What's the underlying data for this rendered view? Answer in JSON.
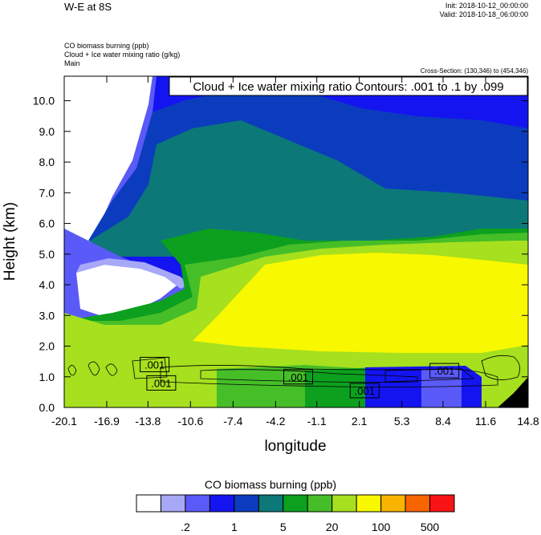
{
  "header": {
    "title": "W-E at 8S",
    "init": "Init: 2018-10-12_00:00:00",
    "valid": "Valid: 2018-10-18_06:00:00",
    "fields": [
      "CO biomass burning   (ppb)",
      "Cloud + Ice water mixing ratio   (g/kg)",
      "Main"
    ],
    "cross_section": "Cross-Section: (130,346) to (454,346)"
  },
  "chart_data": {
    "type": "heatmap",
    "title": "Cloud + Ice water mixing ratio Contours: .001 to .1 by .099",
    "xlabel": "longitude",
    "ylabel": "Height (km)",
    "x_ticks": [
      "-20.1",
      "-16.9",
      "-13.8",
      "-10.6",
      "-7.4",
      "-4.2",
      "-1.1",
      "2.1",
      "5.3",
      "8.4",
      "11.6",
      "14.8"
    ],
    "y_ticks": [
      "0.0",
      "1.0",
      "2.0",
      "3.0",
      "4.0",
      "5.0",
      "6.0",
      "7.0",
      "8.0",
      "9.0",
      "10.0"
    ],
    "xlim": [
      -20.1,
      14.8
    ],
    "ylim": [
      0.0,
      10.8
    ],
    "contour_labels": [
      {
        "text": ".001",
        "lon": -13.3,
        "height": 1.4
      },
      {
        "text": ".001",
        "lon": -12.8,
        "height": 0.8
      },
      {
        "text": ".001",
        "lon": -2.5,
        "height": 1.0
      },
      {
        "text": ".001",
        "lon": 2.5,
        "height": 0.55
      },
      {
        "text": ".001",
        "lon": 8.5,
        "height": 1.2
      }
    ],
    "colorbar": {
      "title": "CO biomass burning  (ppb)",
      "tick_labels": [
        ".2",
        "1",
        "5",
        "20",
        "100",
        "500"
      ],
      "colors": [
        "#ffffff",
        "#a8a8f8",
        "#5a5af8",
        "#1414f0",
        "#0c3cbe",
        "#0c7878",
        "#0ca01e",
        "#46be28",
        "#a6e01e",
        "#f8f800",
        "#f8b400",
        "#f86400",
        "#f81414"
      ]
    }
  }
}
